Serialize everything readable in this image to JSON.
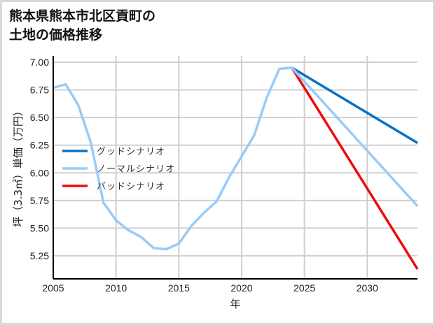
{
  "title": "熊本県熊本市北区貢町の\n土地の価格推移",
  "colors": {
    "good": "#0a72c4",
    "normal": "#99cbfa",
    "bad": "#ee0b0b",
    "grid": "#d0d0d0",
    "axis": "#000000"
  },
  "legend": [
    {
      "label": "グッドシナリオ",
      "color": "#0a72c4"
    },
    {
      "label": "ノーマルシナリオ",
      "color": "#99cbfa"
    },
    {
      "label": "バッドシナリオ",
      "color": "#ee0b0b"
    }
  ],
  "chart_data": {
    "type": "line",
    "title": "熊本県熊本市北区貢町の土地の価格推移",
    "xlabel": "年",
    "ylabel": "坪（3.3㎡）単価（万円）",
    "xlim": [
      2005,
      2034
    ],
    "ylim": [
      5.05,
      7.02
    ],
    "x_ticks": [
      2005,
      2010,
      2015,
      2020,
      2025,
      2030
    ],
    "y_ticks": [
      5.25,
      5.5,
      5.75,
      6.0,
      6.25,
      6.5,
      6.75,
      7.0
    ],
    "y_tick_labels": [
      "5.25",
      "5.50",
      "5.75",
      "6.00",
      "6.25",
      "6.50",
      "6.75",
      "7.00"
    ],
    "grid": true,
    "legend_position": "center-left",
    "series": [
      {
        "name": "ノーマルシナリオ",
        "color": "#99cbfa",
        "x": [
          2005,
          2006,
          2007,
          2008,
          2009,
          2010,
          2011,
          2012,
          2013,
          2014,
          2015,
          2016,
          2017,
          2018,
          2019,
          2020,
          2021,
          2022,
          2023,
          2024,
          2034
        ],
        "y": [
          6.77,
          6.8,
          6.61,
          6.27,
          5.73,
          5.57,
          5.48,
          5.42,
          5.32,
          5.31,
          5.36,
          5.52,
          5.64,
          5.74,
          5.96,
          6.15,
          6.34,
          6.68,
          6.94,
          6.95,
          5.7
        ]
      },
      {
        "name": "グッドシナリオ",
        "color": "#0a72c4",
        "x": [
          2024,
          2034
        ],
        "y": [
          6.95,
          6.27
        ]
      },
      {
        "name": "バッドシナリオ",
        "color": "#ee0b0b",
        "x": [
          2024,
          2034
        ],
        "y": [
          6.95,
          5.13
        ]
      }
    ]
  }
}
